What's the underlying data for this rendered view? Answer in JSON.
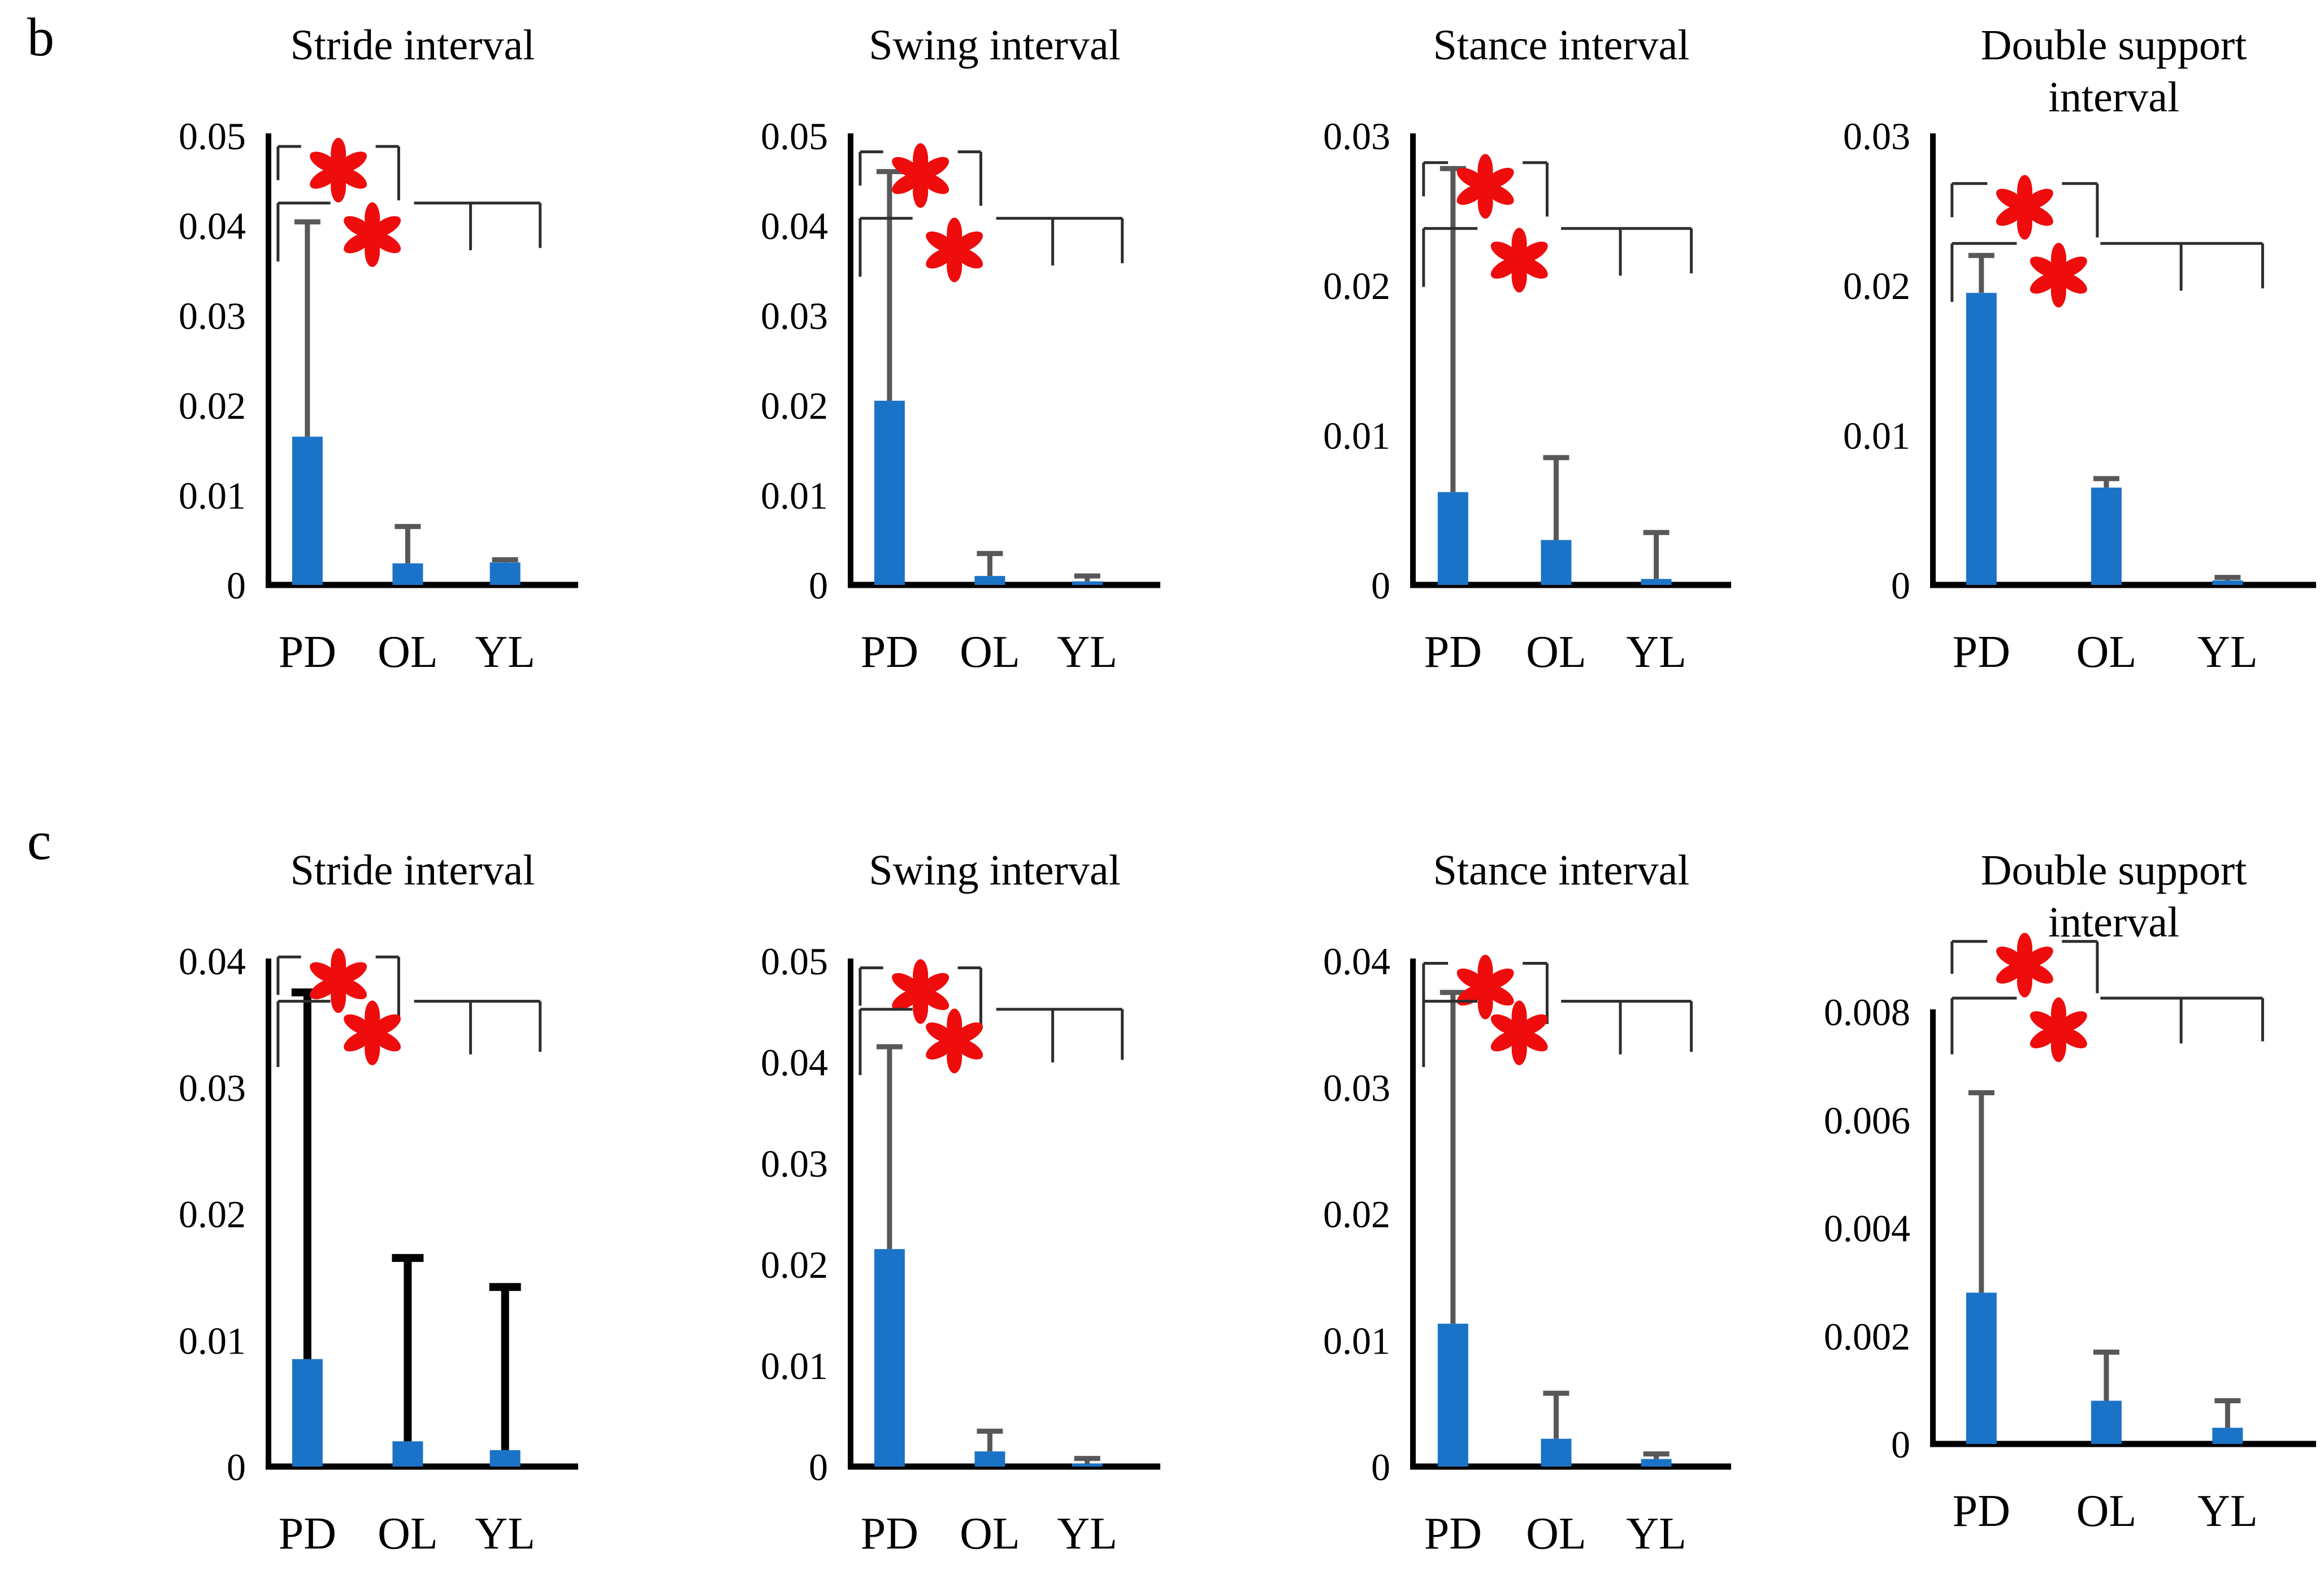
{
  "figure": {
    "panels": [
      {
        "label": "b"
      },
      {
        "label": "c"
      }
    ],
    "groups": [
      "PD",
      "OL",
      "YL"
    ],
    "colors": {
      "bar": "#1b73c7",
      "error_gray": "#58585a",
      "error_black": "#000000",
      "bracket": "#2e2e2e",
      "significance_red": "#ee0c0c",
      "axis": "#000000",
      "text": "#000000"
    }
  },
  "chart_data": [
    {
      "panel": "b",
      "type": "bar",
      "title": "Stride interval",
      "title_lines": [
        "Stride interval"
      ],
      "categories": [
        "PD",
        "OL",
        "YL"
      ],
      "values": [
        0.0165,
        0.0024,
        0.0025
      ],
      "error_top": [
        0.0404,
        0.0065,
        0.0028
      ],
      "ylim": [
        0,
        0.05
      ],
      "yticks": [
        0,
        0.01,
        0.02,
        0.03,
        0.04,
        0.05
      ],
      "ytick_labels": [
        "0",
        "0.01",
        "0.02",
        "0.03",
        "0.04",
        "0.05"
      ],
      "significance": [
        {
          "comparison": "PD vs OL",
          "marker": "*"
        },
        {
          "comparison": "PD vs OL+YL",
          "marker": "*"
        }
      ],
      "error_style": "gray",
      "layout": {
        "bracket_y": [
          0.0488,
          0.0425
        ],
        "grid": false,
        "legend": false
      }
    },
    {
      "panel": "b",
      "type": "bar",
      "title": "Swing interval",
      "title_lines": [
        "Swing interval"
      ],
      "categories": [
        "PD",
        "OL",
        "YL"
      ],
      "values": [
        0.0205,
        0.001,
        0.0004
      ],
      "error_top": [
        0.046,
        0.0035,
        0.001
      ],
      "ylim": [
        0,
        0.05
      ],
      "yticks": [
        0,
        0.01,
        0.02,
        0.03,
        0.04,
        0.05
      ],
      "ytick_labels": [
        "0",
        "0.01",
        "0.02",
        "0.03",
        "0.04",
        "0.05"
      ],
      "significance": [
        {
          "comparison": "PD vs OL",
          "marker": "*"
        },
        {
          "comparison": "PD vs OL+YL",
          "marker": "*"
        }
      ],
      "error_style": "gray",
      "layout": {
        "bracket_y": [
          0.0482,
          0.0408
        ],
        "grid": false,
        "legend": false
      }
    },
    {
      "panel": "b",
      "type": "bar",
      "title": "Stance interval",
      "title_lines": [
        "Stance interval"
      ],
      "categories": [
        "PD",
        "OL",
        "YL"
      ],
      "values": [
        0.0062,
        0.003,
        0.0004
      ],
      "error_top": [
        0.0278,
        0.0085,
        0.0035
      ],
      "ylim": [
        0,
        0.03
      ],
      "yticks": [
        0,
        0.01,
        0.02,
        0.03
      ],
      "ytick_labels": [
        "0",
        "0.01",
        "0.02",
        "0.03"
      ],
      "significance": [
        {
          "comparison": "PD vs OL",
          "marker": "*"
        },
        {
          "comparison": "PD vs OL+YL",
          "marker": "*"
        }
      ],
      "error_style": "gray",
      "layout": {
        "bracket_y": [
          0.0282,
          0.0238
        ],
        "grid": false,
        "legend": false
      }
    },
    {
      "panel": "b",
      "type": "bar",
      "title": "Double support interval",
      "title_lines": [
        "Double support",
        "interval"
      ],
      "categories": [
        "PD",
        "OL",
        "YL"
      ],
      "values": [
        0.0195,
        0.0065,
        0.0003
      ],
      "error_top": [
        0.022,
        0.0071,
        0.0005
      ],
      "ylim": [
        0,
        0.03
      ],
      "yticks": [
        0,
        0.01,
        0.02,
        0.03
      ],
      "ytick_labels": [
        "0",
        "0.01",
        "0.02",
        "0.03"
      ],
      "significance": [
        {
          "comparison": "PD vs OL",
          "marker": "*"
        },
        {
          "comparison": "PD vs OL+YL",
          "marker": "*"
        }
      ],
      "error_style": "gray",
      "layout": {
        "bracket_y": [
          0.0268,
          0.0228
        ],
        "grid": false,
        "legend": false
      }
    },
    {
      "panel": "c",
      "type": "bar",
      "title": "Stride interval",
      "title_lines": [
        "Stride interval"
      ],
      "categories": [
        "PD",
        "OL",
        "YL"
      ],
      "values": [
        0.0085,
        0.002,
        0.0013
      ],
      "error_top": [
        0.0375,
        0.0165,
        0.0142
      ],
      "ylim": [
        0,
        0.04
      ],
      "yticks": [
        0,
        0.01,
        0.02,
        0.03,
        0.04
      ],
      "ytick_labels": [
        "0",
        "0.01",
        "0.02",
        "0.03",
        "0.04"
      ],
      "significance": [
        {
          "comparison": "PD vs OL",
          "marker": "*"
        },
        {
          "comparison": "PD vs OL+YL",
          "marker": "*"
        }
      ],
      "error_style": "black-bold",
      "layout": {
        "bracket_y": [
          0.0403,
          0.0368
        ],
        "grid": false,
        "legend": false
      }
    },
    {
      "panel": "c",
      "type": "bar",
      "title": "Swing interval",
      "title_lines": [
        "Swing interval"
      ],
      "categories": [
        "PD",
        "OL",
        "YL"
      ],
      "values": [
        0.0215,
        0.0015,
        0.0003
      ],
      "error_top": [
        0.0415,
        0.0035,
        0.0008
      ],
      "ylim": [
        0,
        0.05
      ],
      "yticks": [
        0,
        0.01,
        0.02,
        0.03,
        0.04,
        0.05
      ],
      "ytick_labels": [
        "0",
        "0.01",
        "0.02",
        "0.03",
        "0.04",
        "0.05"
      ],
      "significance": [
        {
          "comparison": "PD vs OL",
          "marker": "*"
        },
        {
          "comparison": "PD vs OL+YL",
          "marker": "*"
        }
      ],
      "error_style": "gray",
      "layout": {
        "bracket_y": [
          0.0493,
          0.0452
        ],
        "grid": false,
        "legend": false
      }
    },
    {
      "panel": "c",
      "type": "bar",
      "title": "Stance interval",
      "title_lines": [
        "Stance interval"
      ],
      "categories": [
        "PD",
        "OL",
        "YL"
      ],
      "values": [
        0.0113,
        0.0022,
        0.0006
      ],
      "error_top": [
        0.0375,
        0.0058,
        0.001
      ],
      "ylim": [
        0,
        0.04
      ],
      "yticks": [
        0,
        0.01,
        0.02,
        0.03,
        0.04
      ],
      "ytick_labels": [
        "0",
        "0.01",
        "0.02",
        "0.03",
        "0.04"
      ],
      "significance": [
        {
          "comparison": "PD vs OL",
          "marker": "*"
        },
        {
          "comparison": "PD vs OL+YL",
          "marker": "*"
        }
      ],
      "error_style": "gray",
      "layout": {
        "bracket_y": [
          0.0398,
          0.0368
        ],
        "grid": false,
        "legend": false
      }
    },
    {
      "panel": "c",
      "type": "bar",
      "title": "Double support interval",
      "title_lines": [
        "Double support",
        "interval"
      ],
      "categories": [
        "PD",
        "OL",
        "YL"
      ],
      "values": [
        0.0028,
        0.0008,
        0.0003
      ],
      "error_top": [
        0.0065,
        0.0017,
        0.0008
      ],
      "ylim": [
        0,
        0.008
      ],
      "yticks": [
        0,
        0.002,
        0.004,
        0.006,
        0.008
      ],
      "ytick_labels": [
        "0",
        "0.002",
        "0.004",
        "0.006",
        "0.008"
      ],
      "significance": [
        {
          "comparison": "PD vs OL",
          "marker": "*"
        },
        {
          "comparison": "PD vs OL+YL",
          "marker": "*"
        }
      ],
      "error_style": "gray",
      "layout": {
        "bracket_y": [
          0.0093,
          0.00825
        ],
        "grid": false,
        "legend": false
      }
    }
  ]
}
